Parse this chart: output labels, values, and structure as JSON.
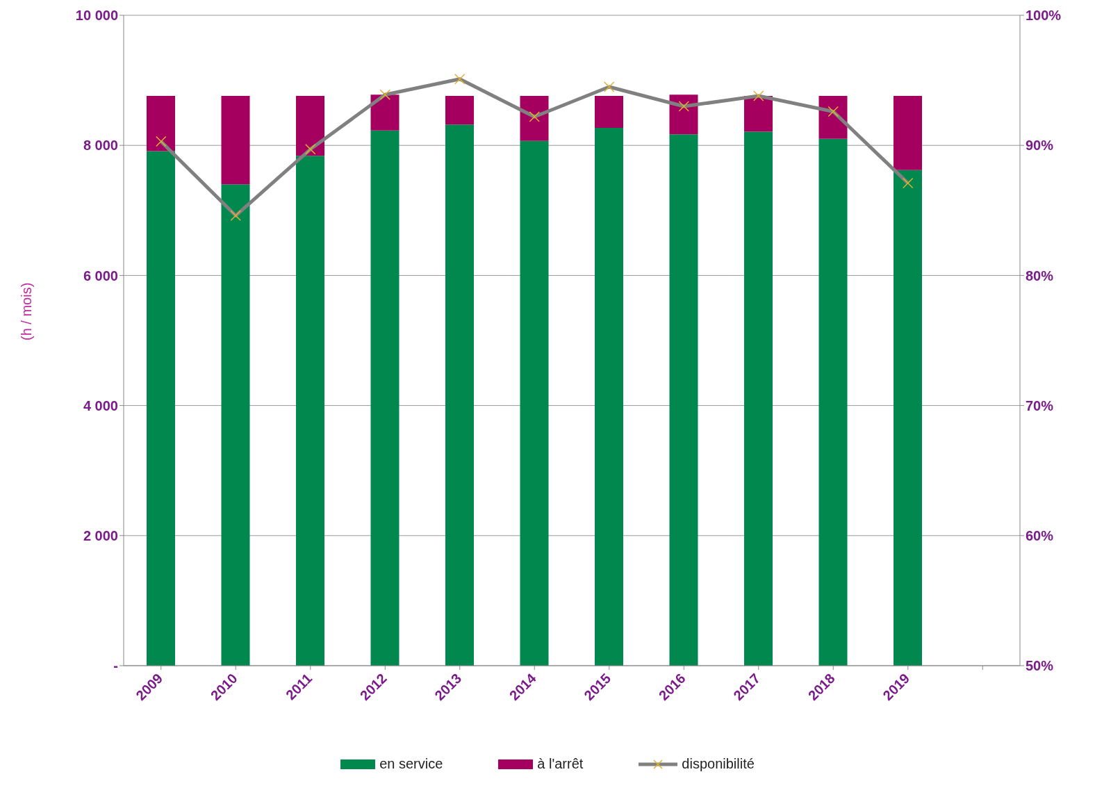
{
  "chart_data": {
    "type": "bar",
    "stacked": true,
    "ylabel": "(h / mois)",
    "categories": [
      "2009",
      "2010",
      "2011",
      "2012",
      "2013",
      "2014",
      "2015",
      "2016",
      "2017",
      "2018",
      "2019",
      null
    ],
    "series": [
      {
        "name": "en service",
        "color": "#00884f",
        "values": [
          7910,
          7400,
          7840,
          8230,
          8320,
          8070,
          8270,
          8170,
          8210,
          8100,
          7620,
          null
        ]
      },
      {
        "name": "à l'arrêt",
        "color": "#a5005f",
        "values": [
          850,
          1360,
          920,
          550,
          440,
          690,
          490,
          610,
          550,
          660,
          1140,
          null
        ]
      },
      {
        "name": "disponibilité",
        "type": "line",
        "axis": "y2",
        "color": "#808080",
        "marker": "cross",
        "values": [
          90.3,
          84.6,
          89.7,
          93.9,
          95.1,
          92.2,
          94.5,
          93.0,
          93.8,
          92.6,
          87.1,
          null
        ]
      }
    ],
    "ylim": [
      0,
      10000
    ],
    "yticks": [
      {
        "value": 0,
        "label": "-"
      },
      {
        "value": 2000,
        "label": "2 000"
      },
      {
        "value": 4000,
        "label": "4 000"
      },
      {
        "value": 6000,
        "label": "6 000"
      },
      {
        "value": 8000,
        "label": "8 000"
      },
      {
        "value": 10000,
        "label": "10 000"
      }
    ],
    "y2lim": [
      50,
      100
    ],
    "y2ticks": [
      {
        "value": 50,
        "label": "50%"
      },
      {
        "value": 60,
        "label": "60%"
      },
      {
        "value": 70,
        "label": "70%"
      },
      {
        "value": 80,
        "label": "80%"
      },
      {
        "value": 90,
        "label": "90%"
      },
      {
        "value": 100,
        "label": "100%"
      }
    ],
    "grid": "y",
    "legend": "bottom"
  }
}
